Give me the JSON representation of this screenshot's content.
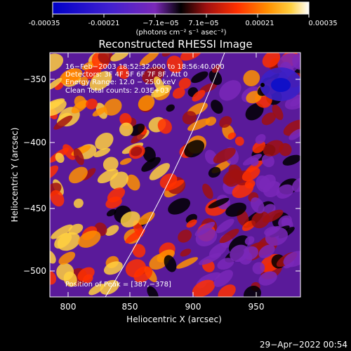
{
  "colorbar": {
    "ticks": [
      "-0.00035",
      "-0.00021",
      "−7.1e−05",
      "7.1e−05",
      "0.00021",
      "0.00035"
    ],
    "unit_label": "(photons cm⁻² s⁻¹ asec⁻²)",
    "colors": [
      "#0000c8",
      "#3a18d0",
      "#7a28c0",
      "#000000",
      "#a01010",
      "#ff3000",
      "#ff9000",
      "#ffd040",
      "#ffffff"
    ]
  },
  "plot": {
    "title": "Reconstructed RHESSI Image",
    "xlabel": "Heliocentric X (arcsec)",
    "ylabel": "Heliocentric Y (arcsec)",
    "xticks": [
      "800",
      "850",
      "900",
      "950"
    ],
    "yticks": [
      "−350",
      "−400",
      "−450",
      "−500"
    ],
    "x_range": [
      785,
      985
    ],
    "y_range": [
      -524,
      -328
    ],
    "info_lines": [
      "16−Feb−2003 18:52:32.000 to 18:56:40.000",
      "Detectors: 3F 4F 5F 6F 7F 8F, Att 0",
      "Energy Range: 12.0 − 25.0 keV",
      "Clean    Total counts: 2.03E+03"
    ],
    "peak_label": "Position of Peak = [387,−378]"
  },
  "footer": {
    "date": "29−Apr−2022 00:54"
  }
}
